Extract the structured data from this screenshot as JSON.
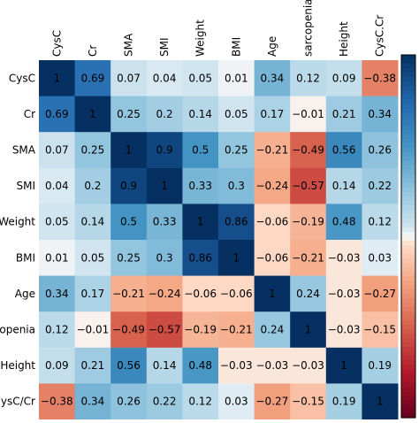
{
  "chart_data": {
    "type": "heatmap",
    "title": "",
    "x_labels": [
      "CysC",
      "Cr",
      "SMA",
      "SMI",
      "Weight",
      "BMI",
      "Age",
      "sarcopenia",
      "Height",
      "CysC.Cr"
    ],
    "y_labels": [
      "CysC",
      "Cr",
      "SMA",
      "SMI",
      "Weight",
      "BMI",
      "Age",
      "openia",
      "Height",
      "ysC/Cr"
    ],
    "values": [
      [
        1,
        0.69,
        0.07,
        0.04,
        0.05,
        0.01,
        0.34,
        0.12,
        0.09,
        -0.38
      ],
      [
        0.69,
        1,
        0.25,
        0.2,
        0.14,
        0.05,
        0.17,
        -0.01,
        0.21,
        0.34
      ],
      [
        0.07,
        0.25,
        1,
        0.9,
        0.5,
        0.25,
        -0.21,
        -0.49,
        0.56,
        0.26
      ],
      [
        0.04,
        0.2,
        0.9,
        1,
        0.33,
        0.3,
        -0.24,
        -0.57,
        0.14,
        0.22
      ],
      [
        0.05,
        0.14,
        0.5,
        0.33,
        1,
        0.86,
        -0.06,
        -0.19,
        0.48,
        0.12
      ],
      [
        0.01,
        0.05,
        0.25,
        0.3,
        0.86,
        1,
        -0.06,
        -0.21,
        -0.03,
        0.03
      ],
      [
        0.34,
        0.17,
        -0.21,
        -0.24,
        -0.06,
        -0.06,
        1,
        0.24,
        -0.03,
        -0.27
      ],
      [
        0.12,
        -0.01,
        -0.49,
        -0.57,
        -0.19,
        -0.21,
        0.24,
        1,
        -0.03,
        -0.15
      ],
      [
        0.09,
        0.21,
        0.56,
        0.14,
        0.48,
        -0.03,
        -0.03,
        -0.03,
        1,
        0.19
      ],
      [
        -0.38,
        0.34,
        0.26,
        0.22,
        0.12,
        0.03,
        -0.27,
        -0.15,
        0.19,
        1
      ]
    ],
    "value_range": [
      -1,
      1
    ],
    "colormap": {
      "negative": "#67001f",
      "neutral": "#f7f7f7",
      "positive": "#053061"
    },
    "colorbar": true,
    "grid": false
  }
}
